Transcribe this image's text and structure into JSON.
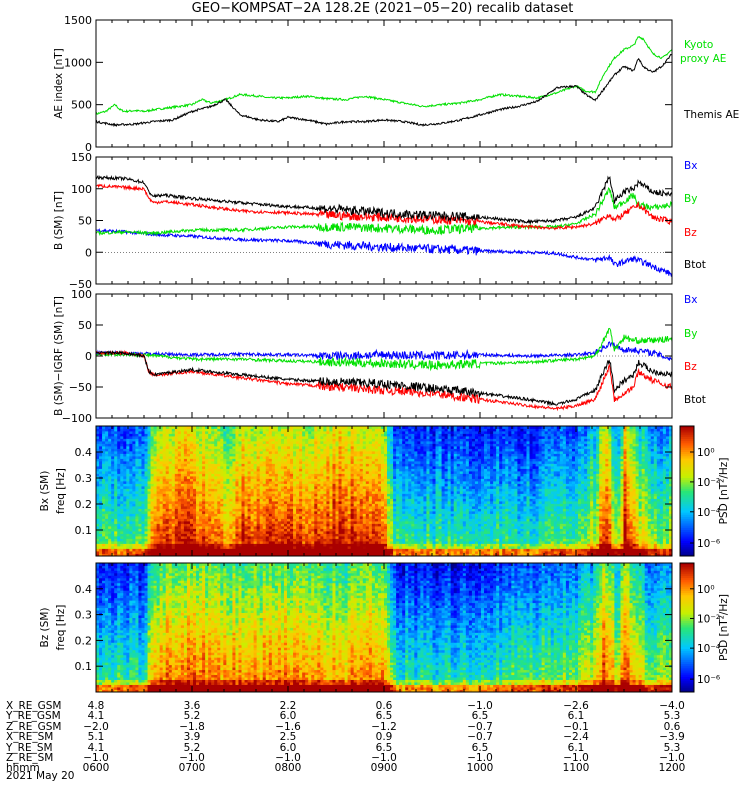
{
  "title": "GEO−KOMPSAT−2A 128.2E (2021−05−20) recalib dataset",
  "colors": {
    "black": "#000000",
    "red": "#ff0000",
    "green": "#00e000",
    "blue": "#0000ff",
    "kyoto": "#00e000"
  },
  "chart_data": [
    {
      "type": "line",
      "panel": "ae",
      "ylabel": "AE index [nT]",
      "ylim": [
        0,
        1500
      ],
      "yticks": [
        "0",
        "500",
        "1000",
        "1500"
      ],
      "xlim": [
        6,
        12
      ],
      "series": [
        {
          "name": "Kyoto proxy AE",
          "color": "green",
          "x": [
            6.0,
            6.1,
            6.2,
            6.25,
            6.3,
            6.4,
            6.5,
            6.6,
            6.8,
            7.0,
            7.1,
            7.2,
            7.35,
            7.5,
            7.7,
            7.8,
            8.0,
            8.2,
            8.4,
            8.6,
            8.8,
            9.0,
            9.2,
            9.4,
            9.6,
            9.8,
            10.0,
            10.2,
            10.4,
            10.6,
            10.8,
            11.0,
            11.1,
            11.2,
            11.3,
            11.4,
            11.5,
            11.6,
            11.65,
            11.7,
            11.8,
            11.9,
            12.0
          ],
          "y": [
            390,
            420,
            500,
            440,
            420,
            430,
            420,
            440,
            470,
            500,
            560,
            520,
            560,
            620,
            600,
            580,
            580,
            600,
            570,
            560,
            600,
            560,
            520,
            480,
            500,
            520,
            560,
            620,
            600,
            580,
            640,
            720,
            660,
            650,
            880,
            1050,
            1150,
            1200,
            1300,
            1280,
            1100,
            1050,
            1150
          ]
        },
        {
          "name": "Themis AE",
          "color": "black",
          "x": [
            6.0,
            6.1,
            6.2,
            6.4,
            6.6,
            6.8,
            7.0,
            7.2,
            7.35,
            7.5,
            7.7,
            7.9,
            8.0,
            8.2,
            8.4,
            8.6,
            8.8,
            9.0,
            9.2,
            9.4,
            9.6,
            9.8,
            10.0,
            10.2,
            10.4,
            10.6,
            10.8,
            11.0,
            11.1,
            11.2,
            11.3,
            11.4,
            11.5,
            11.6,
            11.65,
            11.7,
            11.8,
            11.9,
            12.0
          ],
          "y": [
            300,
            280,
            260,
            270,
            300,
            320,
            420,
            480,
            560,
            380,
            320,
            300,
            350,
            320,
            270,
            300,
            300,
            320,
            300,
            260,
            280,
            320,
            380,
            440,
            480,
            540,
            700,
            720,
            620,
            550,
            700,
            850,
            950,
            900,
            1050,
            950,
            880,
            960,
            1100
          ]
        }
      ],
      "legend": [
        "Kyoto proxy AE",
        "Themis AE"
      ]
    },
    {
      "type": "line",
      "panel": "b",
      "ylabel": "B (SM) [nT]",
      "ylim": [
        -50,
        150
      ],
      "yticks": [
        "−50",
        "0",
        "50",
        "100",
        "150"
      ],
      "xlim": [
        6,
        12
      ],
      "series": [
        {
          "name": "Bx",
          "color": "blue",
          "x": [
            6.0,
            6.3,
            6.6,
            7.0,
            7.5,
            8.0,
            8.5,
            9.0,
            9.5,
            10.0,
            10.5,
            10.8,
            11.0,
            11.2,
            11.35,
            11.4,
            11.5,
            11.6,
            11.8,
            12.0
          ],
          "y": [
            35,
            32,
            28,
            25,
            20,
            18,
            12,
            8,
            5,
            2,
            0,
            -2,
            -8,
            -12,
            -8,
            -20,
            -15,
            -10,
            -22,
            -35
          ]
        },
        {
          "name": "By",
          "color": "green",
          "x": [
            6.0,
            6.3,
            6.6,
            7.0,
            7.5,
            8.0,
            8.5,
            9.0,
            9.5,
            10.0,
            10.5,
            10.8,
            11.0,
            11.2,
            11.35,
            11.4,
            11.5,
            11.6,
            11.65,
            11.8,
            12.0
          ],
          "y": [
            30,
            32,
            30,
            35,
            35,
            40,
            40,
            38,
            35,
            38,
            40,
            40,
            45,
            60,
            100,
            70,
            80,
            90,
            75,
            70,
            75
          ]
        },
        {
          "name": "Bz",
          "color": "red",
          "x": [
            6.0,
            6.3,
            6.5,
            6.55,
            6.6,
            6.7,
            7.0,
            7.5,
            8.0,
            8.5,
            9.0,
            9.5,
            10.0,
            10.5,
            10.8,
            11.0,
            11.2,
            11.35,
            11.4,
            11.5,
            11.6,
            11.65,
            11.8,
            12.0
          ],
          "y": [
            105,
            102,
            100,
            85,
            78,
            80,
            75,
            65,
            62,
            58,
            55,
            52,
            48,
            40,
            38,
            40,
            45,
            60,
            50,
            60,
            70,
            75,
            55,
            48
          ]
        },
        {
          "name": "Btot",
          "color": "black",
          "x": [
            6.0,
            6.3,
            6.5,
            6.55,
            6.6,
            6.7,
            7.0,
            7.5,
            8.0,
            8.5,
            9.0,
            9.5,
            10.0,
            10.5,
            10.8,
            11.0,
            11.2,
            11.35,
            11.4,
            11.5,
            11.6,
            11.65,
            11.8,
            12.0
          ],
          "y": [
            118,
            116,
            110,
            95,
            88,
            90,
            85,
            78,
            72,
            68,
            62,
            58,
            55,
            48,
            50,
            55,
            70,
            120,
            80,
            95,
            100,
            110,
            95,
            90
          ]
        }
      ],
      "legend": [
        "Bx",
        "By",
        "Bz",
        "Btot"
      ]
    },
    {
      "type": "line",
      "panel": "db",
      "ylabel": "B (SM)−IGRF (SM) [nT]",
      "ylim": [
        -100,
        100
      ],
      "yticks": [
        "−100",
        "−50",
        "0",
        "50",
        "100"
      ],
      "xlim": [
        6,
        12
      ],
      "series": [
        {
          "name": "Bx",
          "color": "blue",
          "x": [
            6.0,
            6.5,
            7.0,
            7.5,
            8.0,
            8.5,
            9.0,
            9.5,
            10.0,
            10.5,
            11.0,
            11.2,
            11.35,
            11.5,
            11.6,
            11.8,
            12.0
          ],
          "y": [
            5,
            4,
            2,
            3,
            2,
            0,
            2,
            0,
            2,
            0,
            2,
            5,
            20,
            10,
            10,
            5,
            -5
          ]
        },
        {
          "name": "By",
          "color": "green",
          "x": [
            6.0,
            6.5,
            7.0,
            7.5,
            8.0,
            8.5,
            9.0,
            9.5,
            10.0,
            10.5,
            11.0,
            11.2,
            11.35,
            11.4,
            11.5,
            11.6,
            11.8,
            12.0
          ],
          "y": [
            3,
            2,
            -5,
            -5,
            -8,
            -10,
            -12,
            -15,
            -12,
            -10,
            -5,
            0,
            45,
            10,
            30,
            25,
            25,
            28
          ]
        },
        {
          "name": "Bz",
          "color": "red",
          "x": [
            6.0,
            6.3,
            6.5,
            6.55,
            6.6,
            6.7,
            7.0,
            7.5,
            8.0,
            8.5,
            9.0,
            9.5,
            10.0,
            10.5,
            10.8,
            11.0,
            11.2,
            11.35,
            11.4,
            11.5,
            11.6,
            11.65,
            11.8,
            12.0
          ],
          "y": [
            5,
            5,
            0,
            -25,
            -30,
            -30,
            -25,
            -35,
            -45,
            -50,
            -55,
            -60,
            -70,
            -80,
            -85,
            -80,
            -70,
            -15,
            -70,
            -60,
            -50,
            -25,
            -40,
            -50
          ]
        },
        {
          "name": "Btot",
          "color": "black",
          "x": [
            6.0,
            6.3,
            6.5,
            6.55,
            6.6,
            6.7,
            7.0,
            7.5,
            8.0,
            8.5,
            9.0,
            9.5,
            10.0,
            10.5,
            10.8,
            11.0,
            11.2,
            11.35,
            11.4,
            11.5,
            11.6,
            11.65,
            11.8,
            12.0
          ],
          "y": [
            5,
            5,
            0,
            -25,
            -30,
            -28,
            -22,
            -30,
            -38,
            -42,
            -45,
            -52,
            -60,
            -70,
            -78,
            -70,
            -55,
            -5,
            -55,
            -40,
            -30,
            -10,
            -25,
            -30
          ]
        }
      ],
      "legend": [
        "Bx",
        "By",
        "Bz",
        "Btot"
      ]
    },
    {
      "type": "heatmap",
      "panel": "spec_bx",
      "ylabel": "Bx (SM) freq [Hz]",
      "yticks": [
        "0.1",
        "0.2",
        "0.3",
        "0.4"
      ],
      "ylim": [
        0,
        0.5
      ],
      "xlim": [
        6,
        12
      ],
      "colorbar_label": "PSD [nT²/Hz]",
      "colorbar_ticks": [
        "10⁰",
        "10⁻²",
        "10⁻⁴",
        "10⁻⁶"
      ],
      "activity_profile": {
        "x": [
          6.0,
          6.5,
          6.6,
          6.9,
          7.0,
          7.4,
          7.5,
          7.8,
          8.0,
          8.2,
          8.5,
          8.7,
          9.0,
          9.1,
          9.5,
          10.0,
          10.5,
          11.0,
          11.2,
          11.3,
          11.45,
          11.5,
          11.6,
          11.8,
          12.0
        ],
        "level": [
          0.45,
          0.45,
          0.8,
          0.9,
          0.85,
          0.75,
          0.85,
          0.9,
          0.85,
          0.85,
          0.9,
          0.9,
          0.85,
          0.45,
          0.4,
          0.4,
          0.4,
          0.45,
          0.6,
          0.9,
          0.5,
          0.95,
          0.7,
          0.5,
          0.5
        ]
      }
    },
    {
      "type": "heatmap",
      "panel": "spec_bz",
      "ylabel": "Bz (SM) freq [Hz]",
      "yticks": [
        "0.1",
        "0.2",
        "0.3",
        "0.4"
      ],
      "ylim": [
        0,
        0.5
      ],
      "xlim": [
        6,
        12
      ],
      "colorbar_label": "PSD [nT²/Hz]",
      "colorbar_ticks": [
        "10⁰",
        "10⁻²",
        "10⁻⁴",
        "10⁻⁶"
      ],
      "activity_profile": {
        "x": [
          6.0,
          6.5,
          6.6,
          7.0,
          7.5,
          8.0,
          8.5,
          9.0,
          9.1,
          9.5,
          10.0,
          10.5,
          11.0,
          11.2,
          11.3,
          11.45,
          11.5,
          11.6,
          11.8,
          12.0
        ],
        "level": [
          0.4,
          0.4,
          0.75,
          0.8,
          0.75,
          0.75,
          0.7,
          0.8,
          0.4,
          0.35,
          0.4,
          0.45,
          0.5,
          0.6,
          0.85,
          0.55,
          0.9,
          0.65,
          0.5,
          0.55
        ]
      }
    }
  ],
  "ephemeris": {
    "rows": [
      {
        "label": "X_RE_GSM",
        "values": [
          "4.8",
          "3.6",
          "2.2",
          "0.6",
          "−1.0",
          "−2.6",
          "−4.0"
        ]
      },
      {
        "label": "Y_RE_GSM",
        "values": [
          "4.1",
          "5.2",
          "6.0",
          "6.5",
          "6.5",
          "6.1",
          "5.3"
        ]
      },
      {
        "label": "Z_RE_GSM",
        "values": [
          "−2.0",
          "−1.8",
          "−1.6",
          "−1.2",
          "−0.7",
          "−0.1",
          "0.6"
        ]
      },
      {
        "label": "X_RE_SM",
        "values": [
          "5.1",
          "3.9",
          "2.5",
          "0.9",
          "−0.7",
          "−2.4",
          "−3.9"
        ]
      },
      {
        "label": "Y_RE_SM",
        "values": [
          "4.1",
          "5.2",
          "6.0",
          "6.5",
          "6.5",
          "6.1",
          "5.3"
        ]
      },
      {
        "label": "Z_RE_SM",
        "values": [
          "−1.0",
          "−1.0",
          "−1.0",
          "−1.0",
          "−1.0",
          "−1.0",
          "−1.0"
        ]
      },
      {
        "label": "hhmm",
        "values": [
          "0600",
          "0700",
          "0800",
          "0900",
          "1000",
          "1100",
          "1200"
        ]
      }
    ],
    "date": "2021 May 20"
  }
}
